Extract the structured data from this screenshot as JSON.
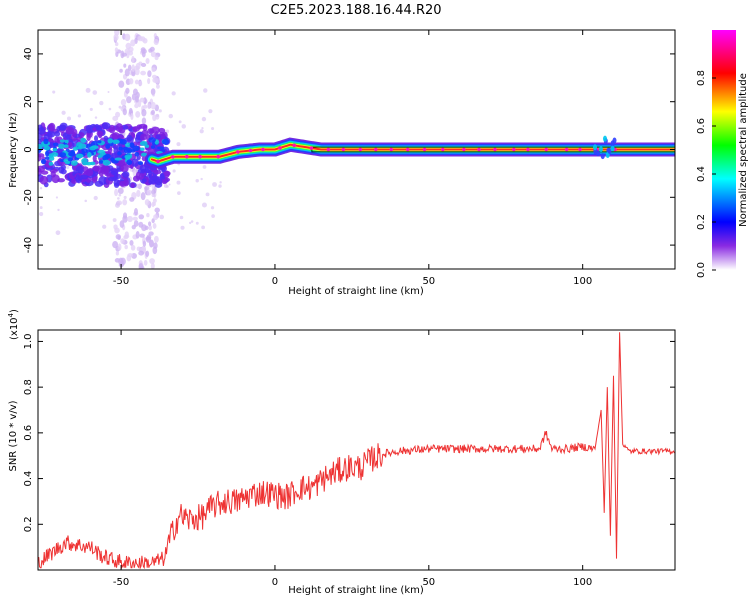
{
  "title": "C2E5.2023.188.16.44.R20",
  "chart_data": [
    {
      "type": "heatmap",
      "xlabel": "Height of straight line (km)",
      "ylabel": "Frequency (Hz)",
      "xlim": [
        -77,
        130
      ],
      "ylim": [
        -50,
        50
      ],
      "x_ticks": [
        -50,
        0,
        50,
        100
      ],
      "y_ticks": [
        -40,
        -20,
        0,
        20,
        40
      ],
      "colorbar": {
        "label": "Normalized spectral amplitude",
        "range": [
          0,
          1
        ],
        "ticks": [
          0.0,
          0.2,
          0.4,
          0.6,
          0.8
        ],
        "colormap": [
          "#ffffff",
          "#8a2be2",
          "#0000ff",
          "#00ffff",
          "#00ff00",
          "#ffff00",
          "#ff0000",
          "#ff00ff"
        ]
      },
      "ridge": {
        "x": [
          -77,
          -65,
          -55,
          -45,
          -38,
          -33,
          -25,
          -18,
          -12,
          -5,
          0,
          5,
          10,
          15,
          30,
          60,
          100,
          108,
          112,
          130
        ],
        "y": [
          1,
          0,
          -1,
          -2,
          -5,
          -3,
          -3,
          -3,
          -1,
          0,
          0,
          2,
          1,
          0,
          0,
          0,
          0,
          0,
          0,
          0
        ]
      },
      "carrier_band": {
        "x_start": 12,
        "x_end": 130,
        "frequency": 0,
        "half_width": 1
      },
      "scatter_region": {
        "x_range": [
          -77,
          -35
        ],
        "y_range": [
          -15,
          10
        ]
      },
      "speckle_columns": {
        "x_range": [
          -52,
          -38
        ],
        "y_range": [
          -50,
          50
        ]
      }
    },
    {
      "type": "line",
      "xlabel": "Height of straight line (km)",
      "ylabel": "SNR (10 * v/v)",
      "y_multiplier_label": "(x10",
      "y_multiplier_exp": "4",
      "y_multiplier_close": ")",
      "xlim": [
        -77,
        130
      ],
      "ylim": [
        0,
        1.05
      ],
      "x_ticks": [
        -50,
        0,
        50,
        100
      ],
      "y_ticks": [
        0.2,
        0.4,
        0.6,
        0.8,
        1.0
      ],
      "color": "#ee3333",
      "series": [
        {
          "x": [
            -77,
            -72,
            -68,
            -64,
            -60,
            -56,
            -52,
            -48,
            -44,
            -40,
            -36,
            -33,
            -31,
            -28,
            -24,
            -20,
            -16,
            -12,
            -8,
            -4,
            0,
            4,
            8,
            12,
            16,
            20,
            24,
            28,
            32,
            36,
            40,
            50,
            60,
            70,
            80,
            86,
            88,
            90,
            95,
            100,
            104,
            106,
            107,
            108,
            109,
            110,
            111,
            112,
            113,
            115,
            120,
            125,
            130
          ],
          "y": [
            0.03,
            0.08,
            0.12,
            0.11,
            0.1,
            0.06,
            0.04,
            0.03,
            0.03,
            0.03,
            0.05,
            0.18,
            0.24,
            0.22,
            0.23,
            0.28,
            0.3,
            0.3,
            0.33,
            0.34,
            0.33,
            0.32,
            0.36,
            0.36,
            0.4,
            0.43,
            0.45,
            0.45,
            0.49,
            0.51,
            0.52,
            0.53,
            0.53,
            0.53,
            0.53,
            0.53,
            0.6,
            0.53,
            0.53,
            0.54,
            0.53,
            0.7,
            0.25,
            0.8,
            0.15,
            0.85,
            0.05,
            1.04,
            0.55,
            0.52,
            0.52,
            0.52,
            0.52
          ]
        }
      ]
    }
  ]
}
